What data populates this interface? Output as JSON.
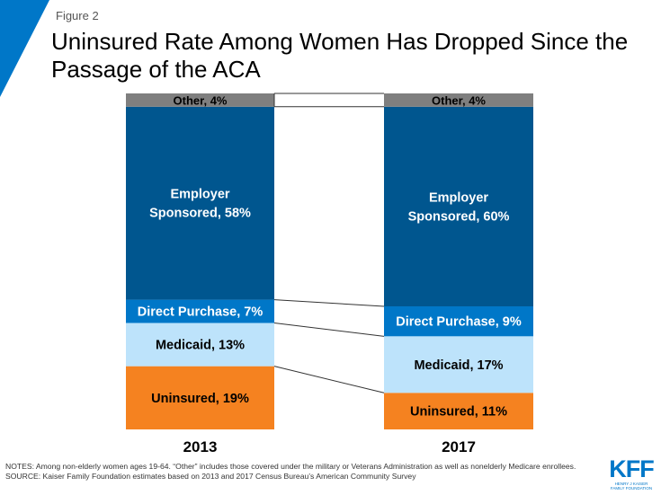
{
  "figure_label": "Figure 2",
  "title": "Uninsured Rate Among Women Has Dropped Since the Passage of the ACA",
  "colors": {
    "accent": "#0077c8",
    "other": "#7f7f7f",
    "employer": "#00568f",
    "direct": "#0077c8",
    "medicaid": "#bde3fb",
    "uninsured": "#f58220"
  },
  "chart_data": {
    "type": "bar",
    "stacked": true,
    "title": "Uninsured Rate Among Women Has Dropped Since the Passage of the ACA",
    "categories": [
      "2013",
      "2017"
    ],
    "series": [
      {
        "name": "Uninsured",
        "key": "uninsured",
        "values": [
          19,
          11
        ],
        "text": "#000",
        "labels": [
          [
            "Uninsured, 19%"
          ],
          [
            "Uninsured, 11%"
          ]
        ]
      },
      {
        "name": "Medicaid",
        "key": "medicaid",
        "values": [
          13,
          17
        ],
        "text": "#000",
        "labels": [
          [
            "Medicaid, 13%"
          ],
          [
            "Medicaid, 17%"
          ]
        ]
      },
      {
        "name": "Direct Purchase",
        "key": "direct",
        "values": [
          7,
          9
        ],
        "text": "#fff",
        "labels": [
          [
            "Direct Purchase, 7%"
          ],
          [
            "Direct Purchase, 9%"
          ]
        ]
      },
      {
        "name": "Employer Sponsored",
        "key": "employer",
        "values": [
          58,
          60
        ],
        "text": "#fff",
        "labels": [
          [
            "Employer",
            "Sponsored, 58%"
          ],
          [
            "Employer",
            "Sponsored, 60%"
          ]
        ]
      },
      {
        "name": "Other",
        "key": "other",
        "values": [
          4,
          4
        ],
        "text": "#000",
        "labels": [
          [
            "Other, 4%"
          ],
          [
            "Other, 4%"
          ]
        ]
      }
    ],
    "xlabel": "",
    "ylabel": "",
    "legend": "none",
    "grid": false
  },
  "notes": "NOTES: Among non-elderly women ages 19-64. “Other” includes those covered under the military or Veterans Administration as well as nonelderly Medicare enrollees.",
  "source": "SOURCE: Kaiser Family Foundation estimates based on 2013 and 2017 Census Bureau’s American Community Survey",
  "logo": {
    "abbr": "KFF",
    "line1": "HENRY J KAISER",
    "line2": "FAMILY FOUNDATION"
  }
}
